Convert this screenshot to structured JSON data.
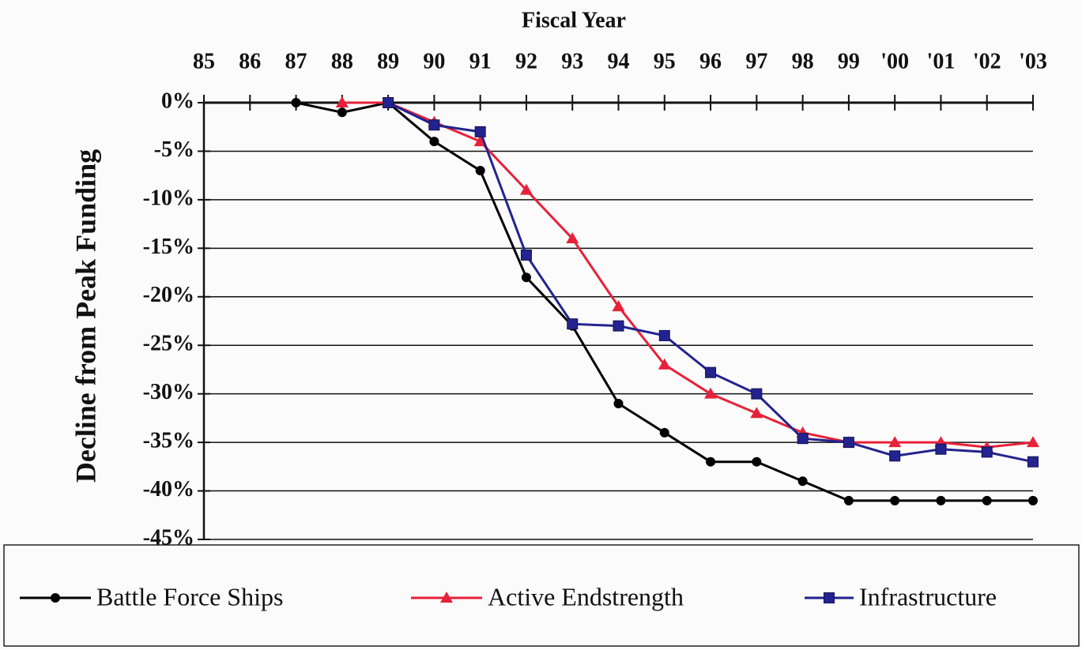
{
  "chart_data": {
    "type": "line",
    "title": "Fiscal Year",
    "y_label": "Decline from Peak Funding",
    "categories": [
      "85",
      "86",
      "87",
      "88",
      "89",
      "90",
      "91",
      "92",
      "93",
      "94",
      "95",
      "96",
      "97",
      "98",
      "99",
      "'00",
      "'01",
      "'02",
      "'03"
    ],
    "series": [
      {
        "name": "Battle Force Ships",
        "color": "#000000",
        "marker": "circle",
        "values": [
          null,
          null,
          0,
          -1,
          0,
          -4,
          -7,
          -18,
          -23,
          -31,
          -34,
          -37,
          -37,
          -39,
          -41,
          -41,
          -41,
          -41,
          -41
        ]
      },
      {
        "name": "Active Endstrength",
        "color": "#e8213a",
        "marker": "triangle",
        "values": [
          null,
          null,
          null,
          0,
          0,
          -2,
          -4,
          -9,
          -14,
          -21,
          -27,
          -30,
          -32,
          -34,
          -35,
          -35,
          -35,
          -35.5,
          -35
        ]
      },
      {
        "name": "Infrastructure",
        "color": "#23238f",
        "marker": "square",
        "values": [
          null,
          null,
          null,
          null,
          0,
          -2.3,
          -3,
          -15.7,
          -22.8,
          -23,
          -24,
          -27.8,
          -30,
          -34.6,
          -35,
          -36.4,
          -35.7,
          -36,
          -37
        ]
      }
    ],
    "ylim": [
      -45,
      0
    ],
    "yticks": [
      {
        "value": 0,
        "label": "0%"
      },
      {
        "value": -5,
        "label": "-5%"
      },
      {
        "value": -10,
        "label": "-10%"
      },
      {
        "value": -15,
        "label": "-15%"
      },
      {
        "value": -20,
        "label": "-20%"
      },
      {
        "value": -25,
        "label": "-25%"
      },
      {
        "value": -30,
        "label": "-30%"
      },
      {
        "value": -35,
        "label": "-35%"
      },
      {
        "value": -40,
        "label": "-40%"
      },
      {
        "value": -45,
        "label": "-45%"
      }
    ],
    "grid": true,
    "legend": "bottom"
  }
}
